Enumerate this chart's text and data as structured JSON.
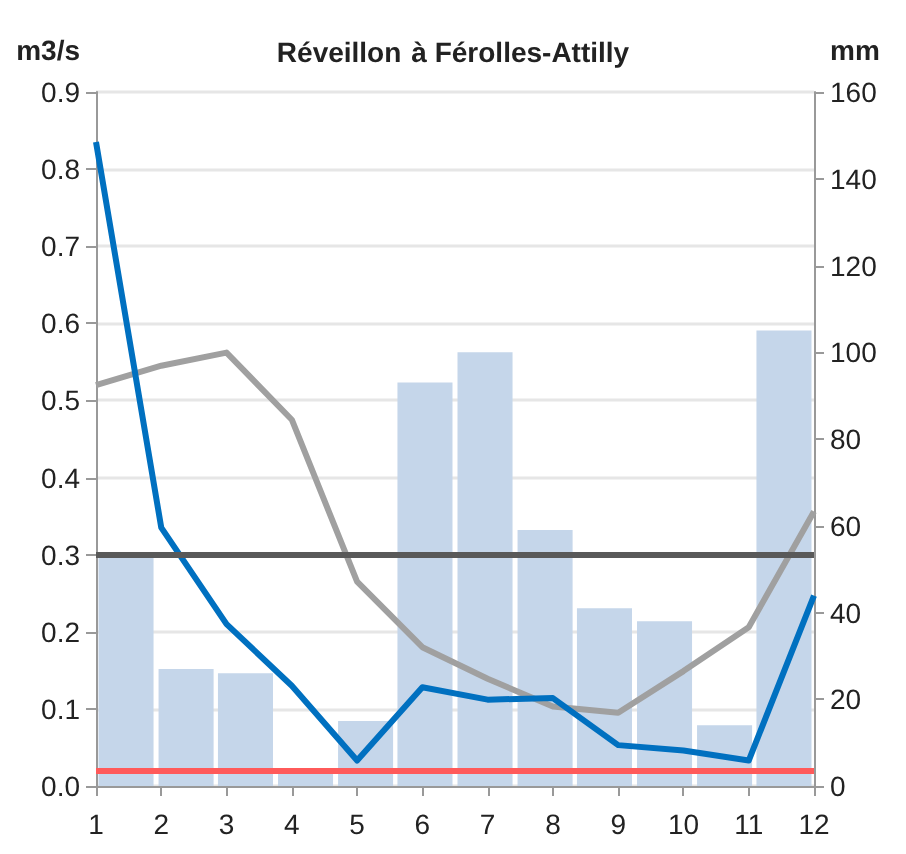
{
  "chart_data": {
    "type": "line",
    "title": "Réveillon à Férolles-Attilly",
    "ylabel": "m3/s",
    "y2label": "mm",
    "xlim": [
      1,
      12
    ],
    "xticks": [
      1,
      2,
      3,
      4,
      5,
      6,
      7,
      8,
      9,
      10,
      11,
      12
    ],
    "ylim": [
      0,
      0.9
    ],
    "yticks": [
      {
        "value": 0,
        "label": "0.0"
      },
      0.1,
      0.2,
      0.3,
      0.4,
      0.5,
      0.6,
      0.7,
      0.8,
      0.9
    ],
    "y2lim": [
      0,
      160
    ],
    "y2ticks": [
      0,
      20,
      40,
      60,
      80,
      100,
      120,
      140,
      160
    ],
    "grid": "y",
    "marker": "none",
    "line_style": "solid",
    "series": [
      {
        "type": "bar",
        "axis": "y2",
        "color": "#c5d6ea",
        "x": [
          1.46,
          2.38,
          3.29,
          4.21,
          5.13,
          6.04,
          6.96,
          7.88,
          8.79,
          9.71,
          10.63,
          11.54
        ],
        "values": [
          53,
          27,
          26,
          3,
          15,
          93,
          100,
          59,
          41,
          38,
          14,
          105
        ]
      },
      {
        "color": "#a0a0a0",
        "x": [
          1,
          2,
          3,
          4,
          5,
          6,
          7,
          8,
          9,
          10,
          11,
          12
        ],
        "values": [
          0.52,
          0.545,
          0.562,
          0.475,
          0.265,
          0.18,
          0.139,
          0.103,
          0.095,
          0.149,
          0.206,
          0.356
        ]
      },
      {
        "color": "#0070c0",
        "x": [
          1,
          2,
          3,
          4,
          5,
          6,
          7,
          8,
          9,
          10,
          11,
          12
        ],
        "values": [
          0.835,
          0.335,
          0.21,
          0.13,
          0.033,
          0.128,
          0.112,
          0.114,
          0.053,
          0.046,
          0.033,
          0.247
        ]
      }
    ],
    "ref_lines": [
      {
        "axis": "y",
        "value": 0.3,
        "color": "#595959"
      },
      {
        "axis": "y",
        "value": 0.02,
        "color": "#ff5a5a"
      }
    ]
  }
}
